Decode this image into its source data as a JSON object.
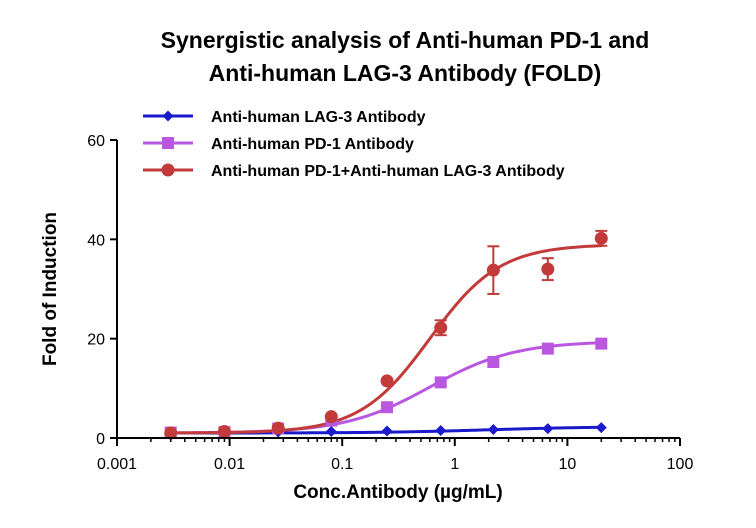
{
  "chart_data": {
    "type": "line",
    "title_lines": [
      "Synergistic analysis of Anti-human PD-1 and",
      "Anti-human LAG-3 Antibody (FOLD)"
    ],
    "xlabel": "Conc.Antibody (µg/mL)",
    "ylabel": "Fold of Induction",
    "x_scale": "log10",
    "xlim": [
      0.001,
      100
    ],
    "ylim": [
      0,
      60
    ],
    "x_ticks": [
      0.001,
      0.01,
      0.1,
      1,
      10,
      100
    ],
    "x_tick_labels": [
      "0.001",
      "0.01",
      "0.1",
      "1",
      "10",
      "100"
    ],
    "y_ticks": [
      0,
      20,
      40,
      60
    ],
    "y_tick_labels": [
      "0",
      "20",
      "40",
      "60"
    ],
    "legend_position": "top-left",
    "series": [
      {
        "name": "Anti-human LAG-3 Antibody",
        "color": "#1a1acc",
        "marker": "diamond",
        "x": [
          0.003,
          0.009,
          0.027,
          0.08,
          0.25,
          0.75,
          2.2,
          6.7,
          20
        ],
        "y": [
          1.0,
          1.1,
          1.2,
          1.3,
          1.4,
          1.5,
          1.7,
          1.9,
          2.1
        ],
        "error": [
          0.2,
          0.2,
          0.2,
          0.2,
          0.2,
          0.2,
          0.2,
          0.2,
          0.2
        ],
        "fit": {
          "bottom": 1.0,
          "top": 2.3,
          "ec50": 2.0,
          "hill": 0.9
        }
      },
      {
        "name": "Anti-human PD-1 Antibody",
        "color": "#b957e0",
        "marker": "square",
        "x": [
          0.003,
          0.009,
          0.027,
          0.08,
          0.25,
          0.75,
          2.2,
          6.7,
          20
        ],
        "y": [
          1.1,
          1.2,
          1.9,
          3.5,
          6.2,
          11.2,
          15.3,
          18.0,
          19.0
        ],
        "error": [
          0.3,
          0.3,
          0.4,
          0.4,
          0.5,
          0.6,
          0.7,
          0.6,
          0.6
        ],
        "fit": {
          "bottom": 1.0,
          "top": 19.5,
          "ec50": 0.6,
          "hill": 1.15
        }
      },
      {
        "name": "Anti-human PD-1+Anti-human LAG-3 Antibody",
        "color": "#c23a3a",
        "marker": "circle",
        "x": [
          0.003,
          0.009,
          0.027,
          0.08,
          0.25,
          0.75,
          2.2,
          6.7,
          20
        ],
        "y": [
          1.0,
          1.3,
          2.0,
          4.3,
          11.5,
          22.2,
          33.8,
          34.0,
          40.2
        ],
        "error": [
          0.3,
          0.3,
          0.4,
          0.5,
          0.6,
          1.5,
          4.8,
          2.2,
          1.5
        ],
        "fit": {
          "bottom": 1.0,
          "top": 39.0,
          "ec50": 0.6,
          "hill": 1.4
        }
      }
    ]
  }
}
